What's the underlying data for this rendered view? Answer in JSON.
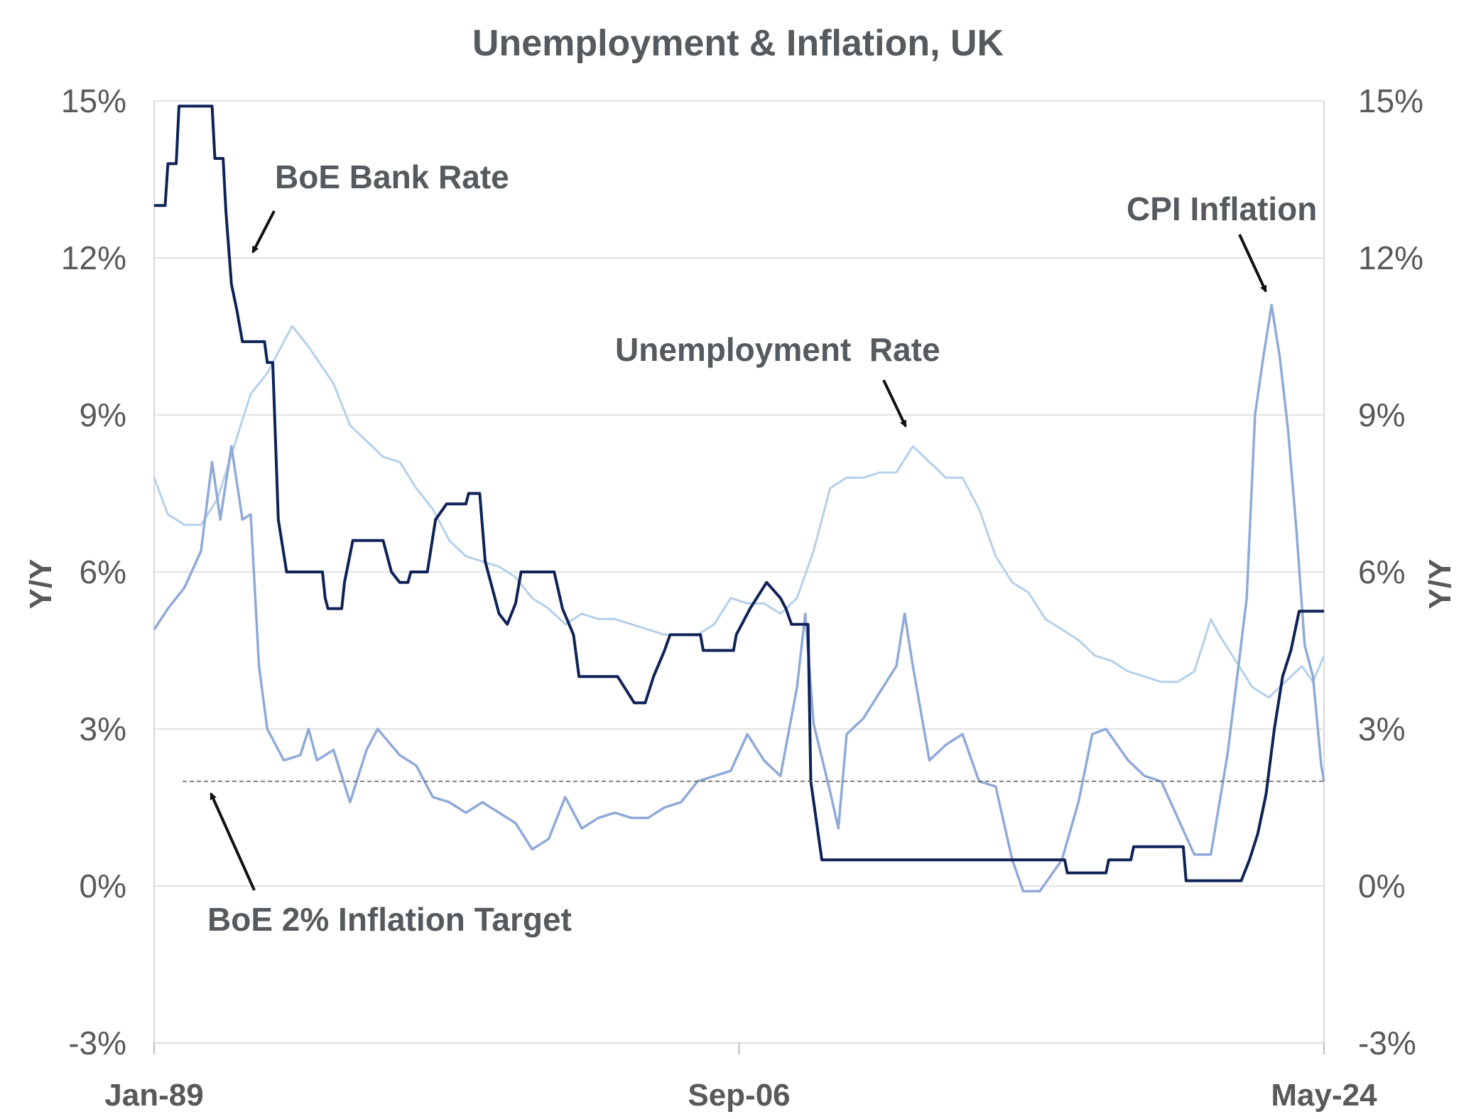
{
  "chart_data": {
    "type": "line",
    "title": "Unemployment & Inflation, UK",
    "ylabel_left": "Y/Y",
    "ylabel_right": "Y/Y",
    "x_range": [
      "1989-01",
      "2024-05"
    ],
    "x_ticks": [
      "Jan-89",
      "Sep-06",
      "May-24"
    ],
    "ylim": [
      -3,
      15
    ],
    "y_ticks": [
      "15%",
      "12%",
      "9%",
      "6%",
      "3%",
      "0%",
      "-3%"
    ],
    "grid": true,
    "colors": {
      "bank_rate": "#0f2257",
      "cpi": "#8fa9d9",
      "unemployment": "#b5d0ea",
      "target": "#595959",
      "annotation": "#555a5e"
    },
    "annotations": [
      {
        "text": "BoE Bank Rate",
        "target": "bank_rate"
      },
      {
        "text": "CPI Inflation",
        "target": "cpi"
      },
      {
        "text": "Unemployment  Rate",
        "target": "unemployment"
      },
      {
        "text": "BoE 2% Inflation Target",
        "target": "target"
      }
    ],
    "series": [
      {
        "id": "bank_rate",
        "points": [
          [
            "1989-01",
            13.0
          ],
          [
            "1989-05",
            13.0
          ],
          [
            "1989-06",
            13.8
          ],
          [
            "1989-09",
            13.8
          ],
          [
            "1989-10",
            14.9
          ],
          [
            "1990-10",
            14.9
          ],
          [
            "1990-11",
            13.9
          ],
          [
            "1991-02",
            13.9
          ],
          [
            "1991-03",
            12.9
          ],
          [
            "1991-05",
            11.5
          ],
          [
            "1991-07",
            11.0
          ],
          [
            "1991-09",
            10.4
          ],
          [
            "1992-05",
            10.4
          ],
          [
            "1992-06",
            10.0
          ],
          [
            "1992-08",
            10.0
          ],
          [
            "1992-10",
            7.0
          ],
          [
            "1993-01",
            6.0
          ],
          [
            "1994-02",
            6.0
          ],
          [
            "1994-03",
            5.5
          ],
          [
            "1994-04",
            5.3
          ],
          [
            "1994-09",
            5.3
          ],
          [
            "1994-10",
            5.8
          ],
          [
            "1995-01",
            6.6
          ],
          [
            "1995-12",
            6.6
          ],
          [
            "1996-03",
            6.0
          ],
          [
            "1996-06",
            5.8
          ],
          [
            "1996-09",
            5.8
          ],
          [
            "1996-10",
            6.0
          ],
          [
            "1997-04",
            6.0
          ],
          [
            "1997-07",
            7.0
          ],
          [
            "1997-11",
            7.3
          ],
          [
            "1998-06",
            7.3
          ],
          [
            "1998-07",
            7.5
          ],
          [
            "1998-11",
            7.5
          ],
          [
            "1999-01",
            6.2
          ],
          [
            "1999-06",
            5.2
          ],
          [
            "1999-09",
            5.0
          ],
          [
            "1999-12",
            5.4
          ],
          [
            "2000-02",
            6.0
          ],
          [
            "2001-02",
            6.0
          ],
          [
            "2001-05",
            5.3
          ],
          [
            "2001-09",
            4.8
          ],
          [
            "2001-11",
            4.0
          ],
          [
            "2003-01",
            4.0
          ],
          [
            "2003-07",
            3.5
          ],
          [
            "2003-11",
            3.5
          ],
          [
            "2004-02",
            4.0
          ],
          [
            "2004-06",
            4.5
          ],
          [
            "2004-08",
            4.8
          ],
          [
            "2005-07",
            4.8
          ],
          [
            "2005-08",
            4.5
          ],
          [
            "2006-07",
            4.5
          ],
          [
            "2006-08",
            4.8
          ],
          [
            "2007-01",
            5.3
          ],
          [
            "2007-07",
            5.8
          ],
          [
            "2007-12",
            5.5
          ],
          [
            "2008-02",
            5.3
          ],
          [
            "2008-04",
            5.0
          ],
          [
            "2008-10",
            5.0
          ],
          [
            "2008-11",
            2.0
          ],
          [
            "2009-03",
            0.5
          ],
          [
            "2016-07",
            0.5
          ],
          [
            "2016-08",
            0.25
          ],
          [
            "2017-10",
            0.25
          ],
          [
            "2017-11",
            0.5
          ],
          [
            "2018-07",
            0.5
          ],
          [
            "2018-08",
            0.75
          ],
          [
            "2020-02",
            0.75
          ],
          [
            "2020-03",
            0.1
          ],
          [
            "2021-11",
            0.1
          ],
          [
            "2022-02",
            0.5
          ],
          [
            "2022-05",
            1.0
          ],
          [
            "2022-08",
            1.75
          ],
          [
            "2022-11",
            3.0
          ],
          [
            "2023-02",
            4.0
          ],
          [
            "2023-05",
            4.5
          ],
          [
            "2023-08",
            5.25
          ],
          [
            "2024-05",
            5.25
          ]
        ]
      },
      {
        "id": "cpi",
        "points": [
          [
            "1989-01",
            4.9
          ],
          [
            "1989-06",
            5.3
          ],
          [
            "1989-12",
            5.7
          ],
          [
            "1990-06",
            6.4
          ],
          [
            "1990-10",
            8.1
          ],
          [
            "1991-01",
            7.0
          ],
          [
            "1991-05",
            8.4
          ],
          [
            "1991-09",
            7.0
          ],
          [
            "1991-12",
            7.1
          ],
          [
            "1992-03",
            4.2
          ],
          [
            "1992-06",
            3.0
          ],
          [
            "1992-12",
            2.4
          ],
          [
            "1993-06",
            2.5
          ],
          [
            "1993-09",
            3.0
          ],
          [
            "1993-12",
            2.4
          ],
          [
            "1994-06",
            2.6
          ],
          [
            "1994-12",
            1.6
          ],
          [
            "1995-06",
            2.6
          ],
          [
            "1995-10",
            3.0
          ],
          [
            "1996-06",
            2.5
          ],
          [
            "1996-12",
            2.3
          ],
          [
            "1997-06",
            1.7
          ],
          [
            "1997-12",
            1.6
          ],
          [
            "1998-06",
            1.4
          ],
          [
            "1998-12",
            1.6
          ],
          [
            "1999-06",
            1.4
          ],
          [
            "1999-12",
            1.2
          ],
          [
            "2000-06",
            0.7
          ],
          [
            "2000-12",
            0.9
          ],
          [
            "2001-06",
            1.7
          ],
          [
            "2001-12",
            1.1
          ],
          [
            "2002-06",
            1.3
          ],
          [
            "2002-12",
            1.4
          ],
          [
            "2003-06",
            1.3
          ],
          [
            "2003-12",
            1.3
          ],
          [
            "2004-06",
            1.5
          ],
          [
            "2004-12",
            1.6
          ],
          [
            "2005-06",
            2.0
          ],
          [
            "2005-12",
            2.1
          ],
          [
            "2006-06",
            2.2
          ],
          [
            "2006-12",
            2.9
          ],
          [
            "2007-06",
            2.4
          ],
          [
            "2007-12",
            2.1
          ],
          [
            "2008-06",
            3.8
          ],
          [
            "2008-09",
            5.2
          ],
          [
            "2008-12",
            3.1
          ],
          [
            "2009-06",
            1.8
          ],
          [
            "2009-09",
            1.1
          ],
          [
            "2009-12",
            2.9
          ],
          [
            "2010-06",
            3.2
          ],
          [
            "2010-12",
            3.7
          ],
          [
            "2011-06",
            4.2
          ],
          [
            "2011-09",
            5.2
          ],
          [
            "2011-12",
            4.2
          ],
          [
            "2012-06",
            2.4
          ],
          [
            "2012-12",
            2.7
          ],
          [
            "2013-06",
            2.9
          ],
          [
            "2013-12",
            2.0
          ],
          [
            "2014-06",
            1.9
          ],
          [
            "2014-12",
            0.5
          ],
          [
            "2015-04",
            -0.1
          ],
          [
            "2015-10",
            -0.1
          ],
          [
            "2016-06",
            0.5
          ],
          [
            "2016-12",
            1.6
          ],
          [
            "2017-05",
            2.9
          ],
          [
            "2017-10",
            3.0
          ],
          [
            "2018-06",
            2.4
          ],
          [
            "2018-12",
            2.1
          ],
          [
            "2019-06",
            2.0
          ],
          [
            "2019-12",
            1.3
          ],
          [
            "2020-06",
            0.6
          ],
          [
            "2020-12",
            0.6
          ],
          [
            "2021-06",
            2.5
          ],
          [
            "2021-10",
            4.2
          ],
          [
            "2022-01",
            5.5
          ],
          [
            "2022-04",
            9.0
          ],
          [
            "2022-07",
            10.1
          ],
          [
            "2022-10",
            11.1
          ],
          [
            "2023-01",
            10.1
          ],
          [
            "2023-04",
            8.7
          ],
          [
            "2023-07",
            6.8
          ],
          [
            "2023-10",
            4.6
          ],
          [
            "2024-01",
            4.0
          ],
          [
            "2024-04",
            2.3
          ],
          [
            "2024-05",
            2.0
          ]
        ]
      },
      {
        "id": "unemployment",
        "points": [
          [
            "1989-01",
            7.8
          ],
          [
            "1989-06",
            7.1
          ],
          [
            "1989-12",
            6.9
          ],
          [
            "1990-06",
            6.9
          ],
          [
            "1990-12",
            7.4
          ],
          [
            "1991-06",
            8.4
          ],
          [
            "1991-12",
            9.4
          ],
          [
            "1992-06",
            9.8
          ],
          [
            "1992-12",
            10.4
          ],
          [
            "1993-03",
            10.7
          ],
          [
            "1993-09",
            10.3
          ],
          [
            "1994-06",
            9.6
          ],
          [
            "1994-12",
            8.8
          ],
          [
            "1995-06",
            8.5
          ],
          [
            "1995-12",
            8.2
          ],
          [
            "1996-06",
            8.1
          ],
          [
            "1996-12",
            7.6
          ],
          [
            "1997-06",
            7.2
          ],
          [
            "1997-12",
            6.6
          ],
          [
            "1998-06",
            6.3
          ],
          [
            "1998-12",
            6.2
          ],
          [
            "1999-06",
            6.1
          ],
          [
            "1999-12",
            5.9
          ],
          [
            "2000-06",
            5.5
          ],
          [
            "2000-12",
            5.3
          ],
          [
            "2001-06",
            5.0
          ],
          [
            "2001-12",
            5.2
          ],
          [
            "2002-06",
            5.1
          ],
          [
            "2002-12",
            5.1
          ],
          [
            "2003-06",
            5.0
          ],
          [
            "2003-12",
            4.9
          ],
          [
            "2004-06",
            4.8
          ],
          [
            "2004-12",
            4.8
          ],
          [
            "2005-06",
            4.8
          ],
          [
            "2005-12",
            5.0
          ],
          [
            "2006-06",
            5.5
          ],
          [
            "2006-12",
            5.4
          ],
          [
            "2007-06",
            5.4
          ],
          [
            "2007-12",
            5.2
          ],
          [
            "2008-06",
            5.5
          ],
          [
            "2008-12",
            6.4
          ],
          [
            "2009-06",
            7.6
          ],
          [
            "2009-12",
            7.8
          ],
          [
            "2010-06",
            7.8
          ],
          [
            "2010-12",
            7.9
          ],
          [
            "2011-06",
            7.9
          ],
          [
            "2011-12",
            8.4
          ],
          [
            "2012-06",
            8.1
          ],
          [
            "2012-12",
            7.8
          ],
          [
            "2013-06",
            7.8
          ],
          [
            "2013-12",
            7.2
          ],
          [
            "2014-06",
            6.3
          ],
          [
            "2014-12",
            5.8
          ],
          [
            "2015-06",
            5.6
          ],
          [
            "2015-12",
            5.1
          ],
          [
            "2016-06",
            4.9
          ],
          [
            "2016-12",
            4.7
          ],
          [
            "2017-06",
            4.4
          ],
          [
            "2017-12",
            4.3
          ],
          [
            "2018-06",
            4.1
          ],
          [
            "2018-12",
            4.0
          ],
          [
            "2019-06",
            3.9
          ],
          [
            "2019-12",
            3.9
          ],
          [
            "2020-06",
            4.1
          ],
          [
            "2020-12",
            5.1
          ],
          [
            "2021-03",
            4.8
          ],
          [
            "2021-09",
            4.3
          ],
          [
            "2022-03",
            3.8
          ],
          [
            "2022-09",
            3.6
          ],
          [
            "2023-03",
            3.9
          ],
          [
            "2023-09",
            4.2
          ],
          [
            "2024-01",
            3.9
          ],
          [
            "2024-05",
            4.4
          ]
        ]
      }
    ],
    "reference_lines": [
      {
        "id": "target",
        "y": 2.0,
        "style": "dashed"
      }
    ]
  }
}
